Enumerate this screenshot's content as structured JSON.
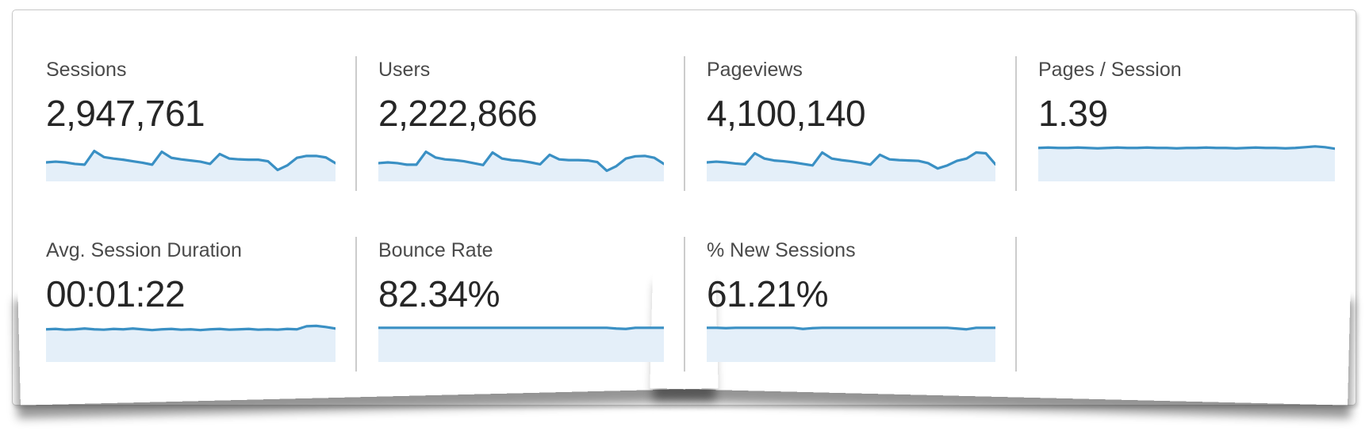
{
  "panel": {
    "name": "Analytics overview metric summary",
    "accent_color": "#3a90c4",
    "spark_fill_color": "#e4eff9",
    "divider_color": "#cccccc"
  },
  "cards": [
    {
      "id": "sessions",
      "label": "Sessions",
      "value": "2,947,761",
      "sparkline": [
        0.5,
        0.48,
        0.5,
        0.54,
        0.56,
        0.2,
        0.36,
        0.4,
        0.43,
        0.47,
        0.51,
        0.56,
        0.22,
        0.38,
        0.42,
        0.45,
        0.48,
        0.54,
        0.28,
        0.4,
        0.42,
        0.43,
        0.43,
        0.47,
        0.7,
        0.58,
        0.38,
        0.33,
        0.33,
        0.37,
        0.52
      ]
    },
    {
      "id": "users",
      "label": "Users",
      "value": "2,222,866",
      "sparkline": [
        0.52,
        0.5,
        0.52,
        0.56,
        0.56,
        0.22,
        0.37,
        0.42,
        0.44,
        0.47,
        0.52,
        0.57,
        0.24,
        0.4,
        0.44,
        0.46,
        0.5,
        0.55,
        0.3,
        0.42,
        0.44,
        0.44,
        0.45,
        0.49,
        0.72,
        0.6,
        0.4,
        0.34,
        0.33,
        0.38,
        0.54
      ]
    },
    {
      "id": "pageviews",
      "label": "Pageviews",
      "value": "4,100,140",
      "sparkline": [
        0.5,
        0.48,
        0.5,
        0.53,
        0.55,
        0.26,
        0.4,
        0.45,
        0.47,
        0.5,
        0.54,
        0.58,
        0.24,
        0.4,
        0.44,
        0.47,
        0.51,
        0.56,
        0.3,
        0.42,
        0.44,
        0.45,
        0.46,
        0.52,
        0.66,
        0.58,
        0.46,
        0.4,
        0.24,
        0.26,
        0.55
      ]
    },
    {
      "id": "pages-per-session",
      "label": "Pages / Session",
      "value": "1.39",
      "sparkline": [
        0.12,
        0.11,
        0.12,
        0.12,
        0.11,
        0.12,
        0.13,
        0.12,
        0.11,
        0.12,
        0.12,
        0.11,
        0.12,
        0.12,
        0.13,
        0.12,
        0.12,
        0.11,
        0.12,
        0.12,
        0.13,
        0.12,
        0.11,
        0.12,
        0.12,
        0.13,
        0.12,
        0.1,
        0.08,
        0.1,
        0.14
      ]
    },
    {
      "id": "avg-session-duration",
      "label": "Avg. Session Duration",
      "value": "00:01:22",
      "sparkline": [
        0.14,
        0.13,
        0.15,
        0.14,
        0.12,
        0.14,
        0.15,
        0.13,
        0.14,
        0.12,
        0.14,
        0.16,
        0.14,
        0.13,
        0.15,
        0.14,
        0.16,
        0.14,
        0.13,
        0.15,
        0.14,
        0.13,
        0.15,
        0.14,
        0.15,
        0.13,
        0.14,
        0.06,
        0.05,
        0.08,
        0.12
      ]
    },
    {
      "id": "bounce-rate",
      "label": "Bounce Rate",
      "value": "82.34%",
      "sparkline": [
        0.1,
        0.1,
        0.1,
        0.1,
        0.1,
        0.1,
        0.1,
        0.1,
        0.1,
        0.1,
        0.1,
        0.1,
        0.1,
        0.1,
        0.1,
        0.1,
        0.1,
        0.1,
        0.1,
        0.1,
        0.1,
        0.1,
        0.1,
        0.1,
        0.1,
        0.12,
        0.13,
        0.1,
        0.1,
        0.1,
        0.1
      ]
    },
    {
      "id": "percent-new-sessions",
      "label": "% New Sessions",
      "value": "61.21%",
      "sparkline": [
        0.1,
        0.1,
        0.11,
        0.1,
        0.1,
        0.1,
        0.1,
        0.1,
        0.1,
        0.1,
        0.13,
        0.11,
        0.1,
        0.1,
        0.1,
        0.1,
        0.1,
        0.1,
        0.1,
        0.1,
        0.1,
        0.1,
        0.1,
        0.1,
        0.1,
        0.1,
        0.12,
        0.14,
        0.1,
        0.1,
        0.1
      ]
    }
  ]
}
